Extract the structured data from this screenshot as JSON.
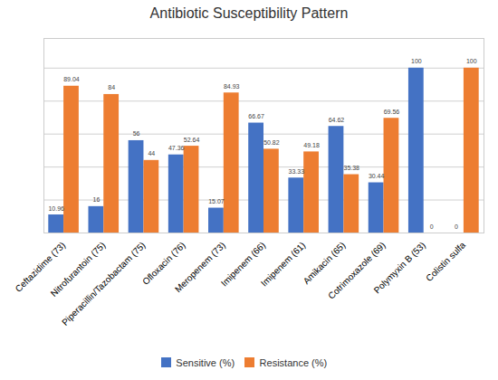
{
  "chart_data": {
    "type": "bar",
    "title": "Antibiotic Susceptibility Pattern",
    "categories": [
      "Ceftazidime (73)",
      "Nitrofurantoin (75)",
      "Piperacillin/Tazobactam (75)",
      "Ofloxacin (76)",
      "Meropenem (73)",
      "Imipenem (66)",
      "Imipenem (61)",
      "Amikacin (65)",
      "Cotrimoxazole (69)",
      "Polymyxin B (53)",
      "Colistin sulfa"
    ],
    "series": [
      {
        "name": "Sensitive (%)",
        "color": "#4472C4",
        "values": [
          10.96,
          16,
          56,
          47.36,
          15.07,
          66.67,
          33.33,
          64.62,
          30.44,
          100,
          0
        ]
      },
      {
        "name": "Resistance (%)",
        "color": "#ED7D31",
        "values": [
          89.04,
          84,
          44,
          52.64,
          84.93,
          50.82,
          49.18,
          35.38,
          69.56,
          0,
          100
        ]
      }
    ],
    "ylim": [
      0,
      118
    ],
    "yticks": [
      0,
      20,
      40,
      60,
      80,
      100
    ],
    "grid": true,
    "legend": "bottom",
    "data_labels": true,
    "tick_labels": "x"
  }
}
